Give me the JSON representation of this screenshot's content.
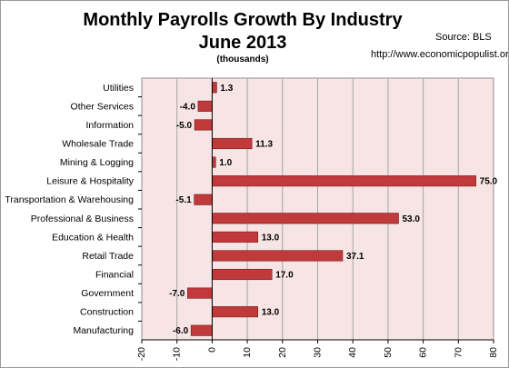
{
  "chart_data": {
    "type": "bar",
    "orientation": "horizontal",
    "title": "Monthly Payrolls Growth By Industry",
    "title_line2": "June 2013",
    "subtitle": "(thousands)",
    "source": "Source:  BLS",
    "url": "http://www.economicpopulist.org",
    "categories": [
      "Utilities",
      "Other Services",
      "Information",
      "Wholesale Trade",
      "Mining & Logging",
      "Leisure & Hospitality",
      "Transportation & Warehousing",
      "Professional & Business",
      "Education & Health",
      "Retail Trade",
      "Financial",
      "Government",
      "Construction",
      "Manufacturing"
    ],
    "values": [
      1.3,
      -4.0,
      -5.0,
      11.3,
      1.0,
      75.0,
      -5.1,
      53.0,
      13.0,
      37.1,
      17.0,
      -7.0,
      13.0,
      -6.0
    ],
    "value_labels": [
      "1.3",
      "-4.0",
      "-5.0",
      "11.3",
      "1.0",
      "75.0",
      "-5.1",
      "53.0",
      "13.0",
      "37.1",
      "17.0",
      "-7.0",
      "13.0",
      "-6.0"
    ],
    "xlim": [
      -20,
      80
    ],
    "xticks": [
      -20,
      -10,
      0,
      10,
      20,
      30,
      40,
      50,
      60,
      70,
      80
    ],
    "bar_color": "#c0393b",
    "plot_background": "#f7e4e4",
    "grid": true
  }
}
